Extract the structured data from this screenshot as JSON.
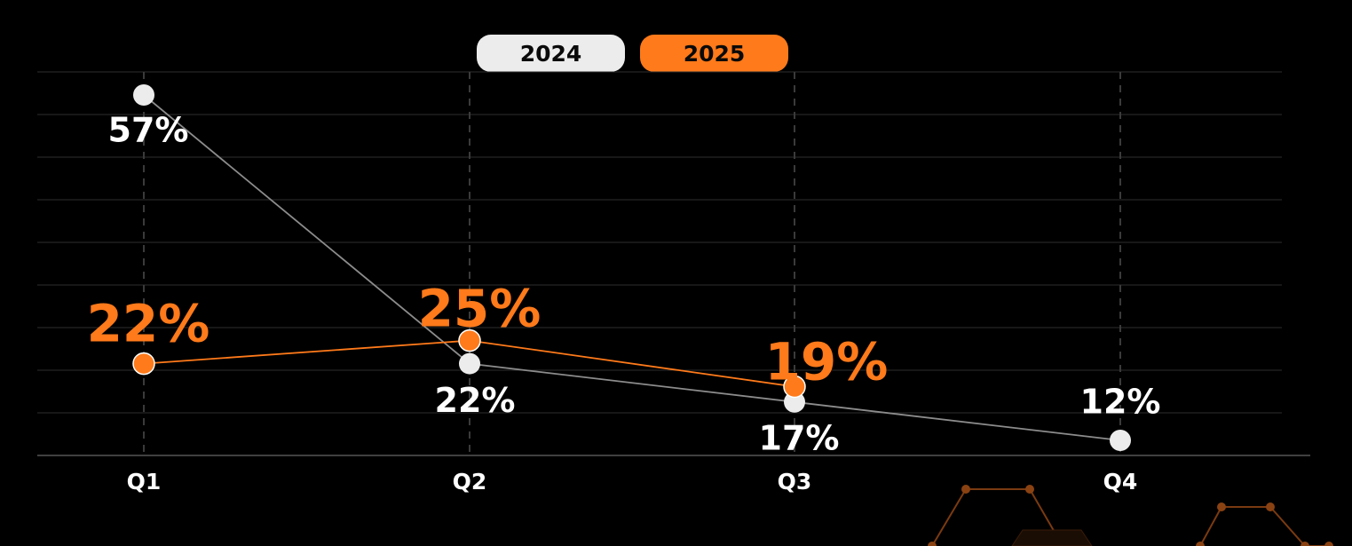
{
  "legend": {
    "item_2024": "2024",
    "item_2025": "2025"
  },
  "chart_data": {
    "type": "line",
    "categories": [
      "Q1",
      "Q2",
      "Q3",
      "Q4"
    ],
    "series": [
      {
        "name": "2024",
        "values": [
          57,
          22,
          17,
          12
        ],
        "labels": [
          "57%",
          "22%",
          "17%",
          "12%"
        ],
        "color": "#ececec",
        "line_color": "#8c8c8c"
      },
      {
        "name": "2025",
        "values": [
          22,
          25,
          19,
          null
        ],
        "labels": [
          "22%",
          "25%",
          "19%",
          ""
        ],
        "color": "#ff7a1a",
        "line_color": "#ff7a1a"
      }
    ],
    "ylim": [
      10,
      60
    ],
    "grid": true,
    "legend_position": "top-center"
  },
  "colors": {
    "background": "#000000",
    "accent": "#ff7a1a",
    "light": "#ececec",
    "grid": "#2e2e2e"
  }
}
